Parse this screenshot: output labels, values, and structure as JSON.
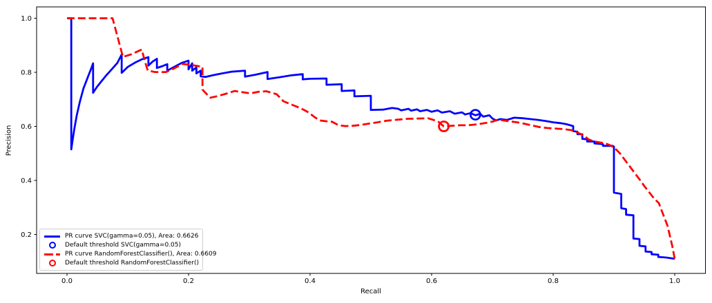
{
  "figure": {
    "background": "#ffffff"
  },
  "axes": {
    "xlabel": "Recall",
    "ylabel": "Precision",
    "x_tick_labels": [
      "0.0",
      "0.2",
      "0.4",
      "0.6",
      "0.8",
      "1.0"
    ],
    "x_tick_values": [
      0.0,
      0.2,
      0.4,
      0.6,
      0.8,
      1.0
    ],
    "y_tick_labels": [
      "0.2",
      "0.4",
      "0.6",
      "0.8",
      "1.0"
    ],
    "y_tick_values": [
      0.2,
      0.4,
      0.6,
      0.8,
      1.0
    ]
  },
  "legend": {
    "items": [
      {
        "key": "svc-pr-curve",
        "label": "PR curve SVC(gamma=0.05), Area: 0.6626",
        "swatch": "blue-line"
      },
      {
        "key": "svc-threshold",
        "label": "Default threshold SVC(gamma=0.05)",
        "swatch": "blue-circle"
      },
      {
        "key": "rf-pr-curve",
        "label": "PR curve RandomForestClassifier(), Area: 0.6609",
        "swatch": "red-dashed-line"
      },
      {
        "key": "rf-threshold",
        "label": "Default threshold RandomForestClassifier()",
        "swatch": "red-circle"
      }
    ]
  },
  "chart_data": {
    "type": "line",
    "title": "",
    "xlabel": "Recall",
    "ylabel": "Precision",
    "xlim": [
      -0.05,
      1.0506
    ],
    "ylim": [
      0.056,
      1.042
    ],
    "grid": false,
    "legend_position": "lower left",
    "colors": {
      "svc": "#0000ff",
      "rf": "#ff0000"
    },
    "series": [
      {
        "key": "svc-pr-curve",
        "name": "PR curve SVC(gamma=0.05), Area: 0.6626",
        "area": 0.6626,
        "color": "#0000ff",
        "style": "solid",
        "points": [
          [
            0.0,
            1.0
          ],
          [
            0.007,
            1.0
          ],
          [
            0.007,
            0.515
          ],
          [
            0.009,
            0.545
          ],
          [
            0.012,
            0.59
          ],
          [
            0.016,
            0.64
          ],
          [
            0.021,
            0.69
          ],
          [
            0.027,
            0.74
          ],
          [
            0.034,
            0.78
          ],
          [
            0.04,
            0.815
          ],
          [
            0.043,
            0.833
          ],
          [
            0.043,
            0.724
          ],
          [
            0.049,
            0.745
          ],
          [
            0.056,
            0.765
          ],
          [
            0.064,
            0.787
          ],
          [
            0.074,
            0.812
          ],
          [
            0.083,
            0.835
          ],
          [
            0.09,
            0.866
          ],
          [
            0.09,
            0.798
          ],
          [
            0.1,
            0.82
          ],
          [
            0.112,
            0.836
          ],
          [
            0.123,
            0.848
          ],
          [
            0.134,
            0.856
          ],
          [
            0.134,
            0.825
          ],
          [
            0.141,
            0.84
          ],
          [
            0.148,
            0.85
          ],
          [
            0.148,
            0.816
          ],
          [
            0.157,
            0.823
          ],
          [
            0.165,
            0.83
          ],
          [
            0.165,
            0.806
          ],
          [
            0.177,
            0.821
          ],
          [
            0.189,
            0.835
          ],
          [
            0.2,
            0.843
          ],
          [
            0.2,
            0.811
          ],
          [
            0.206,
            0.833
          ],
          [
            0.206,
            0.806
          ],
          [
            0.213,
            0.818
          ],
          [
            0.213,
            0.796
          ],
          [
            0.22,
            0.806
          ],
          [
            0.22,
            0.785
          ],
          [
            0.228,
            0.783
          ],
          [
            0.24,
            0.789
          ],
          [
            0.255,
            0.796
          ],
          [
            0.27,
            0.802
          ],
          [
            0.293,
            0.806
          ],
          [
            0.293,
            0.784
          ],
          [
            0.31,
            0.791
          ],
          [
            0.33,
            0.801
          ],
          [
            0.33,
            0.775
          ],
          [
            0.35,
            0.782
          ],
          [
            0.37,
            0.789
          ],
          [
            0.388,
            0.793
          ],
          [
            0.388,
            0.774
          ],
          [
            0.4,
            0.776
          ],
          [
            0.427,
            0.777
          ],
          [
            0.427,
            0.754
          ],
          [
            0.452,
            0.756
          ],
          [
            0.452,
            0.731
          ],
          [
            0.473,
            0.733
          ],
          [
            0.473,
            0.711
          ],
          [
            0.5,
            0.713
          ],
          [
            0.5,
            0.661
          ],
          [
            0.52,
            0.662
          ],
          [
            0.535,
            0.668
          ],
          [
            0.545,
            0.665
          ],
          [
            0.55,
            0.659
          ],
          [
            0.562,
            0.665
          ],
          [
            0.566,
            0.658
          ],
          [
            0.576,
            0.663
          ],
          [
            0.581,
            0.656
          ],
          [
            0.592,
            0.661
          ],
          [
            0.6,
            0.654
          ],
          [
            0.61,
            0.659
          ],
          [
            0.617,
            0.651
          ],
          [
            0.63,
            0.656
          ],
          [
            0.638,
            0.647
          ],
          [
            0.65,
            0.652
          ],
          [
            0.655,
            0.644
          ],
          [
            0.664,
            0.649
          ],
          [
            0.672,
            0.641
          ],
          [
            0.68,
            0.646
          ],
          [
            0.685,
            0.636
          ],
          [
            0.695,
            0.641
          ],
          [
            0.7,
            0.629
          ],
          [
            0.706,
            0.622
          ],
          [
            0.713,
            0.627
          ],
          [
            0.724,
            0.624
          ],
          [
            0.736,
            0.632
          ],
          [
            0.75,
            0.63
          ],
          [
            0.762,
            0.627
          ],
          [
            0.775,
            0.624
          ],
          [
            0.788,
            0.62
          ],
          [
            0.8,
            0.615
          ],
          [
            0.812,
            0.612
          ],
          [
            0.822,
            0.608
          ],
          [
            0.833,
            0.601
          ],
          [
            0.833,
            0.583
          ],
          [
            0.84,
            0.58
          ],
          [
            0.84,
            0.571
          ],
          [
            0.848,
            0.571
          ],
          [
            0.848,
            0.554
          ],
          [
            0.856,
            0.552
          ],
          [
            0.856,
            0.544
          ],
          [
            0.868,
            0.544
          ],
          [
            0.868,
            0.537
          ],
          [
            0.882,
            0.534
          ],
          [
            0.882,
            0.528
          ],
          [
            0.898,
            0.528
          ],
          [
            0.9,
            0.525
          ],
          [
            0.9,
            0.355
          ],
          [
            0.912,
            0.35
          ],
          [
            0.912,
            0.297
          ],
          [
            0.92,
            0.294
          ],
          [
            0.92,
            0.273
          ],
          [
            0.932,
            0.271
          ],
          [
            0.932,
            0.185
          ],
          [
            0.942,
            0.183
          ],
          [
            0.942,
            0.158
          ],
          [
            0.952,
            0.156
          ],
          [
            0.952,
            0.137
          ],
          [
            0.962,
            0.135
          ],
          [
            0.962,
            0.127
          ],
          [
            0.973,
            0.125
          ],
          [
            0.973,
            0.117
          ],
          [
            0.985,
            0.115
          ],
          [
            1.0,
            0.11
          ]
        ]
      },
      {
        "key": "svc-threshold",
        "name": "Default threshold SVC(gamma=0.05)",
        "color": "#0000ff",
        "style": "marker",
        "points": [
          [
            0.672,
            0.643
          ]
        ]
      },
      {
        "key": "rf-pr-curve",
        "name": "PR curve RandomForestClassifier(), Area: 0.6609",
        "area": 0.6609,
        "color": "#ff0000",
        "style": "dashed",
        "points": [
          [
            0.0,
            1.0
          ],
          [
            0.075,
            1.0
          ],
          [
            0.092,
            0.857
          ],
          [
            0.105,
            0.866
          ],
          [
            0.123,
            0.884
          ],
          [
            0.129,
            0.835
          ],
          [
            0.133,
            0.806
          ],
          [
            0.145,
            0.801
          ],
          [
            0.163,
            0.801
          ],
          [
            0.176,
            0.814
          ],
          [
            0.19,
            0.831
          ],
          [
            0.205,
            0.827
          ],
          [
            0.216,
            0.823
          ],
          [
            0.223,
            0.82
          ],
          [
            0.223,
            0.736
          ],
          [
            0.23,
            0.719
          ],
          [
            0.236,
            0.706
          ],
          [
            0.248,
            0.712
          ],
          [
            0.262,
            0.721
          ],
          [
            0.276,
            0.731
          ],
          [
            0.29,
            0.726
          ],
          [
            0.302,
            0.722
          ],
          [
            0.315,
            0.728
          ],
          [
            0.328,
            0.73
          ],
          [
            0.345,
            0.719
          ],
          [
            0.356,
            0.693
          ],
          [
            0.368,
            0.682
          ],
          [
            0.378,
            0.673
          ],
          [
            0.39,
            0.661
          ],
          [
            0.398,
            0.651
          ],
          [
            0.407,
            0.635
          ],
          [
            0.416,
            0.622
          ],
          [
            0.426,
            0.619
          ],
          [
            0.436,
            0.617
          ],
          [
            0.447,
            0.604
          ],
          [
            0.458,
            0.601
          ],
          [
            0.47,
            0.602
          ],
          [
            0.483,
            0.605
          ],
          [
            0.496,
            0.61
          ],
          [
            0.511,
            0.615
          ],
          [
            0.526,
            0.621
          ],
          [
            0.545,
            0.625
          ],
          [
            0.561,
            0.628
          ],
          [
            0.578,
            0.629
          ],
          [
            0.594,
            0.63
          ],
          [
            0.603,
            0.624
          ],
          [
            0.611,
            0.617
          ],
          [
            0.62,
            0.6
          ],
          [
            0.633,
            0.602
          ],
          [
            0.646,
            0.604
          ],
          [
            0.66,
            0.604
          ],
          [
            0.676,
            0.608
          ],
          [
            0.69,
            0.613
          ],
          [
            0.701,
            0.618
          ],
          [
            0.709,
            0.625
          ],
          [
            0.721,
            0.621
          ],
          [
            0.734,
            0.617
          ],
          [
            0.746,
            0.613
          ],
          [
            0.76,
            0.606
          ],
          [
            0.776,
            0.598
          ],
          [
            0.79,
            0.594
          ],
          [
            0.802,
            0.592
          ],
          [
            0.816,
            0.59
          ],
          [
            0.83,
            0.586
          ],
          [
            0.84,
            0.577
          ],
          [
            0.851,
            0.566
          ],
          [
            0.858,
            0.552
          ],
          [
            0.866,
            0.545
          ],
          [
            0.876,
            0.541
          ],
          [
            0.886,
            0.537
          ],
          [
            0.894,
            0.53
          ],
          [
            0.901,
            0.52
          ],
          [
            0.91,
            0.5
          ],
          [
            0.918,
            0.476
          ],
          [
            0.926,
            0.452
          ],
          [
            0.934,
            0.428
          ],
          [
            0.942,
            0.404
          ],
          [
            0.95,
            0.379
          ],
          [
            0.956,
            0.362
          ],
          [
            0.963,
            0.342
          ],
          [
            0.968,
            0.329
          ],
          [
            0.974,
            0.316
          ],
          [
            0.977,
            0.297
          ],
          [
            0.983,
            0.263
          ],
          [
            0.988,
            0.234
          ],
          [
            0.992,
            0.195
          ],
          [
            0.996,
            0.157
          ],
          [
            1.0,
            0.11
          ]
        ]
      },
      {
        "key": "rf-threshold",
        "name": "Default threshold RandomForestClassifier()",
        "color": "#ff0000",
        "style": "marker",
        "points": [
          [
            0.62,
            0.6
          ]
        ]
      }
    ]
  }
}
